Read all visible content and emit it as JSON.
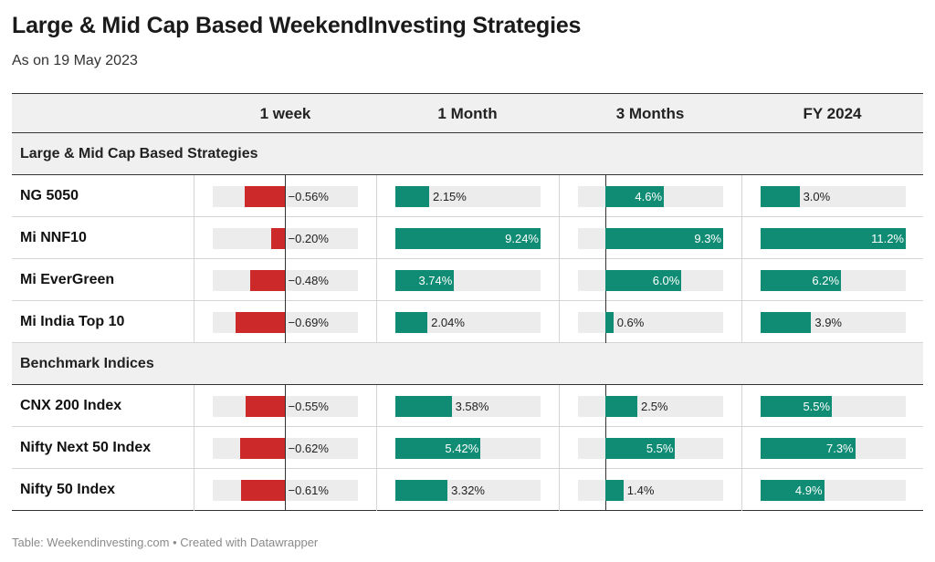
{
  "title": "Large & Mid Cap Based WeekendInvesting Strategies",
  "subtitle": "As on 19 May 2023",
  "footer": "Table: Weekendinvesting.com • Created with Datawrapper",
  "colors": {
    "positive": "#0f8c73",
    "negative": "#cc2a2a",
    "track": "#ececec",
    "header_bg": "#f0f0f0"
  },
  "chart_data": {
    "type": "table",
    "columns": [
      "1 week",
      "1 Month",
      "3 Months",
      "FY 2024"
    ],
    "groups": [
      {
        "label": "Large & Mid Cap Based Strategies",
        "rows": [
          {
            "name": "NG 5050",
            "values": [
              -0.56,
              2.15,
              4.6,
              3.0
            ],
            "labels": [
              "−0.56%",
              "2.15%",
              "4.6%",
              "3.0%"
            ]
          },
          {
            "name": "Mi NNF10",
            "values": [
              -0.2,
              9.24,
              9.3,
              11.2
            ],
            "labels": [
              "−0.20%",
              "9.24%",
              "9.3%",
              "11.2%"
            ]
          },
          {
            "name": "Mi EverGreen",
            "values": [
              -0.48,
              3.74,
              6.0,
              6.2
            ],
            "labels": [
              "−0.48%",
              "3.74%",
              "6.0%",
              "6.2%"
            ]
          },
          {
            "name": "Mi India Top 10",
            "values": [
              -0.69,
              2.04,
              0.6,
              3.9
            ],
            "labels": [
              "−0.69%",
              "2.04%",
              "0.6%",
              "3.9%"
            ]
          }
        ]
      },
      {
        "label": "Benchmark Indices",
        "rows": [
          {
            "name": "CNX 200 Index",
            "values": [
              -0.55,
              3.58,
              2.5,
              5.5
            ],
            "labels": [
              "−0.55%",
              "3.58%",
              "2.5%",
              "5.5%"
            ]
          },
          {
            "name": "Nifty Next 50 Index",
            "values": [
              -0.62,
              5.42,
              5.5,
              7.3
            ],
            "labels": [
              "−0.62%",
              "5.42%",
              "5.5%",
              "7.3%"
            ]
          },
          {
            "name": "Nifty 50 Index",
            "values": [
              -0.61,
              3.32,
              1.4,
              4.9
            ],
            "labels": [
              "−0.61%",
              "3.32%",
              "1.4%",
              "4.9%"
            ]
          }
        ]
      }
    ],
    "scales": [
      {
        "min": -1.0,
        "max": 1.0
      },
      {
        "min": 0,
        "max": 9.24
      },
      {
        "min": -2.2,
        "max": 9.3
      },
      {
        "min": 0,
        "max": 11.2
      }
    ]
  }
}
